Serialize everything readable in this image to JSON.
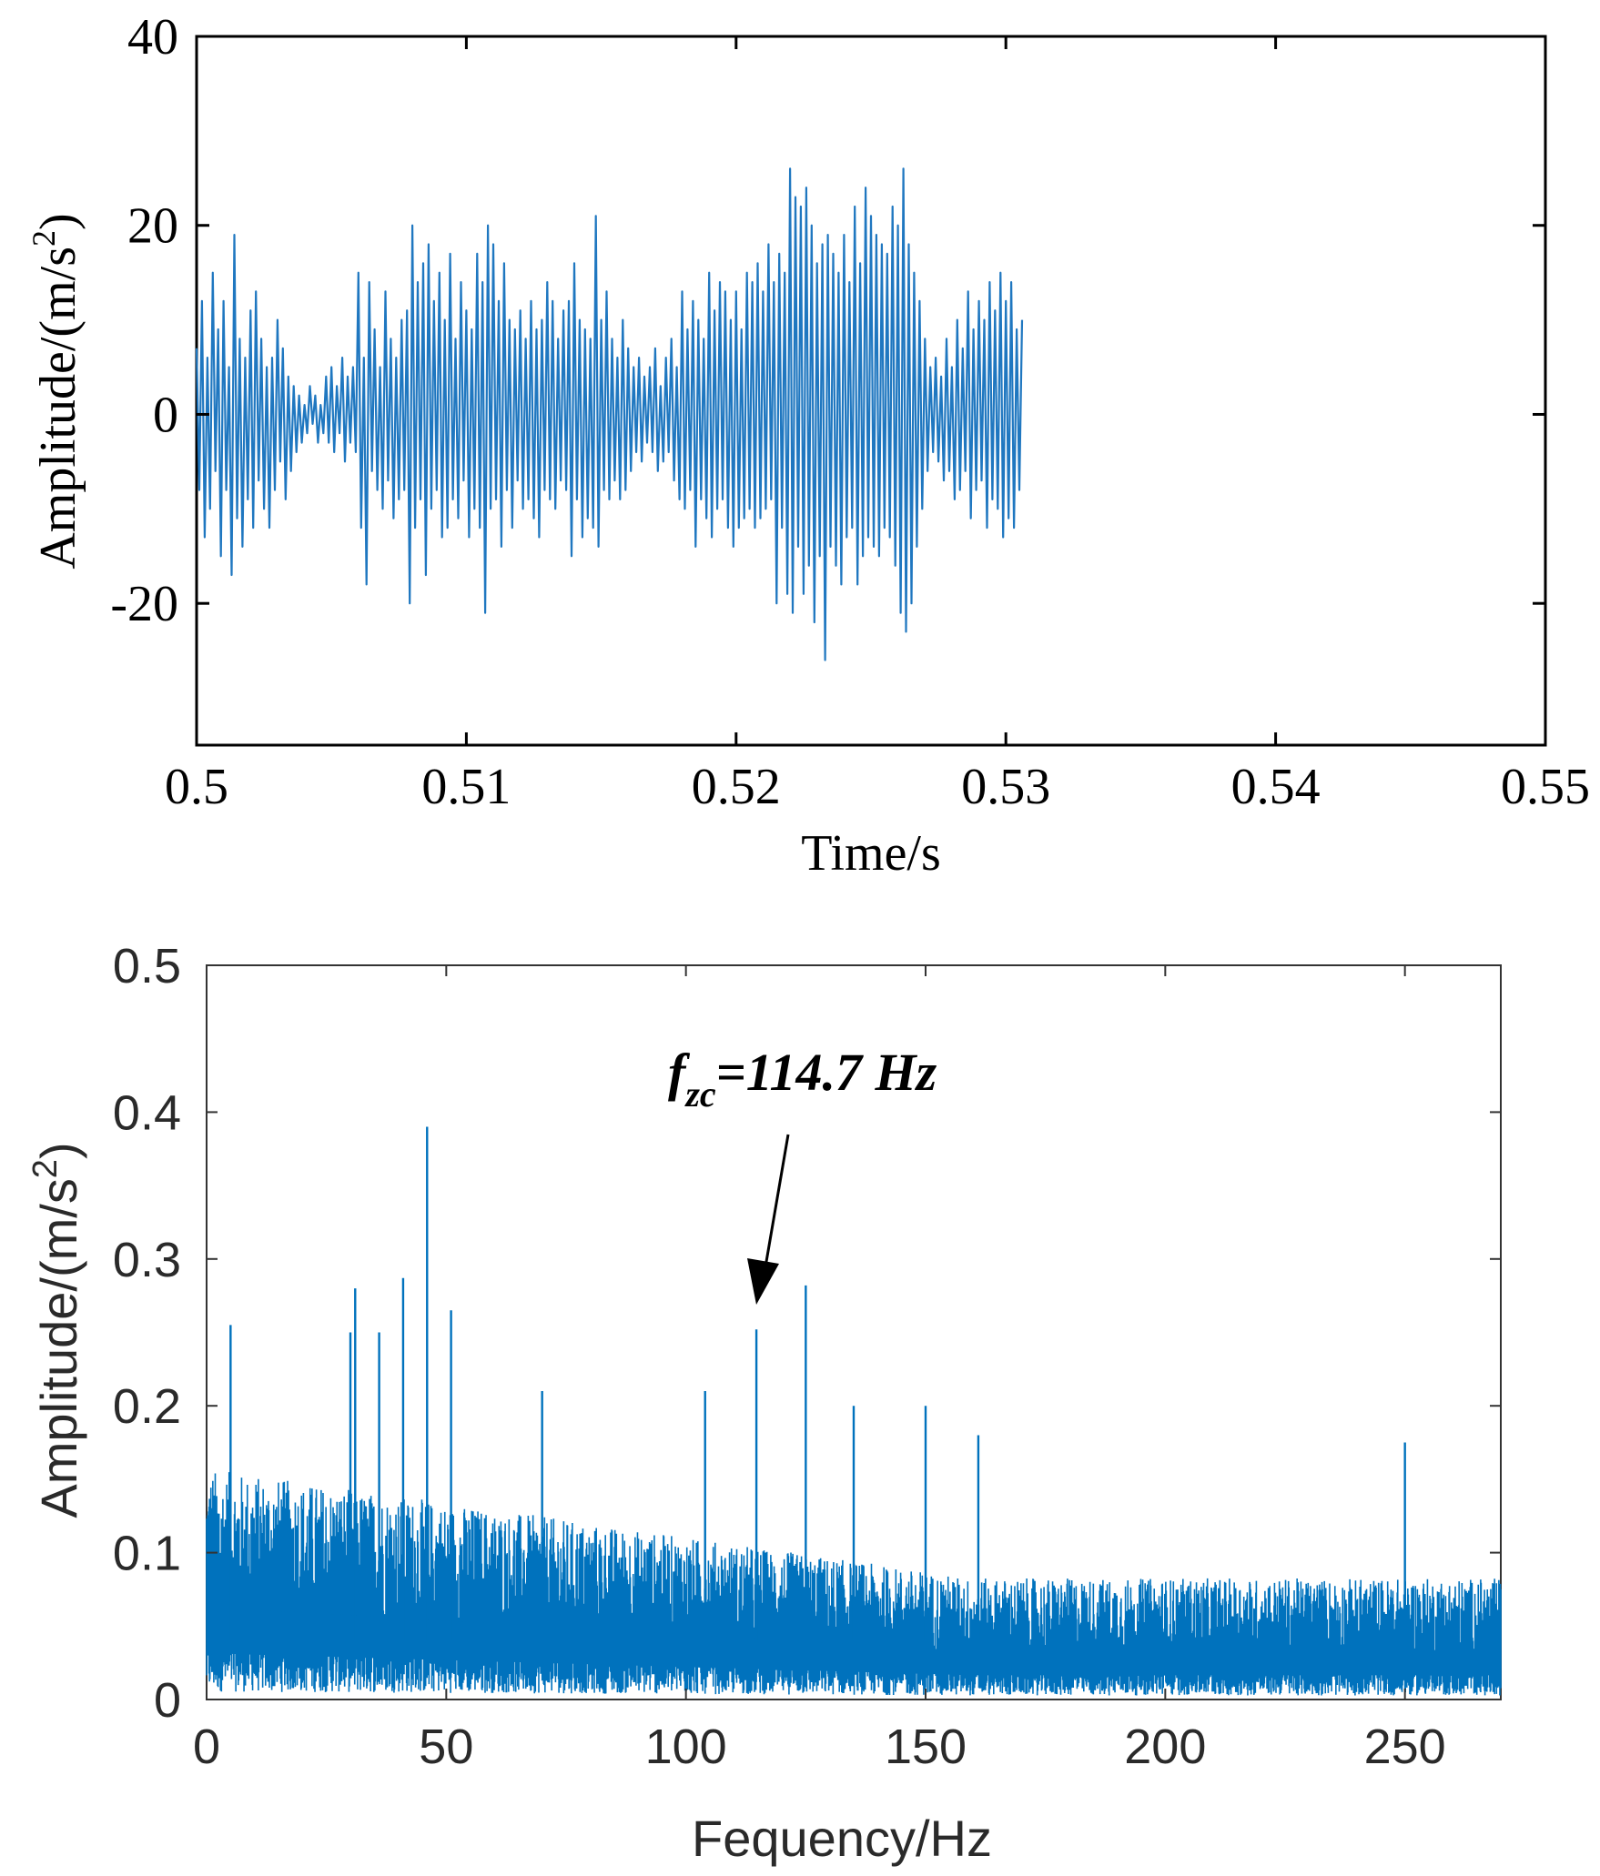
{
  "chart_data": [
    {
      "type": "line",
      "title": "",
      "xlabel": "Time/s",
      "ylabel": "Amplitude/(m/s",
      "ylabel_exponent": "2",
      "ylabel_close": ")",
      "xlim": [
        0.5,
        0.55
      ],
      "ylim": [
        -35,
        40
      ],
      "xticks": [
        0.5,
        0.51,
        0.52,
        0.53,
        0.54,
        0.55
      ],
      "xtick_labels": [
        "0.5",
        "0.51",
        "0.52",
        "0.53",
        "0.54",
        "0.55"
      ],
      "yticks": [
        -20,
        0,
        20,
        40
      ],
      "ytick_labels": [
        "-20",
        "0",
        "20",
        "40"
      ],
      "grid": false,
      "color": "#1f77c0",
      "series": [
        {
          "sample_interval_s": 0.0001,
          "x_start": 0.5,
          "values": [
            7,
            -8,
            12,
            -13,
            6,
            -10,
            15,
            -6,
            9,
            -15,
            12,
            -8,
            5,
            -17,
            19,
            -11,
            8,
            -14,
            6,
            -9,
            11,
            -12,
            13,
            -7,
            8,
            -10,
            5,
            -12,
            6,
            -8,
            10,
            -5,
            7,
            -9,
            4,
            -6,
            3,
            -4,
            2,
            -3,
            1,
            -2,
            3,
            -1,
            2,
            -3,
            1,
            -2,
            4,
            -3,
            5,
            -4,
            3,
            -2,
            6,
            -5,
            4,
            -3,
            5,
            -4,
            15,
            -12,
            6,
            -18,
            14,
            -6,
            9,
            -8,
            5,
            -10,
            13,
            -7,
            8,
            -11,
            6,
            -9,
            10,
            -8,
            11,
            -20,
            20,
            -12,
            14,
            -9,
            16,
            -17,
            18,
            -10,
            12,
            -8,
            15,
            -13,
            10,
            -12,
            17,
            -9,
            8,
            -11,
            14,
            -7,
            11,
            -13,
            9,
            -10,
            17,
            -12,
            14,
            -21,
            20,
            -10,
            18,
            -9,
            12,
            -14,
            16,
            -8,
            10,
            -12,
            9,
            -7,
            11,
            -10,
            8,
            -9,
            12,
            -11,
            9,
            -13,
            10,
            -8,
            14,
            -9,
            12,
            -10,
            8,
            -7,
            11,
            -8,
            12,
            -15,
            16,
            -9,
            10,
            -13,
            9,
            -11,
            8,
            -12,
            21,
            -14,
            10,
            -8,
            13,
            -9,
            8,
            -7,
            6,
            -9,
            10,
            -8,
            7,
            -6,
            5,
            -4,
            6,
            -5,
            4,
            -3,
            5,
            -4,
            7,
            -6,
            3,
            -5,
            6,
            -4,
            8,
            -7,
            5,
            -9,
            13,
            -10,
            9,
            -8,
            12,
            -14,
            10,
            -9,
            8,
            -11,
            15,
            -13,
            11,
            -10,
            14,
            -9,
            13,
            -12,
            10,
            -14,
            13,
            -12,
            9,
            -11,
            15,
            -10,
            14,
            -12,
            16,
            -11,
            13,
            -10,
            18,
            -9,
            14,
            -20,
            17,
            -12,
            15,
            -19,
            26,
            -21,
            23,
            -14,
            22,
            -19,
            24,
            -16,
            20,
            -22,
            16,
            -15,
            18,
            -26,
            19,
            -14,
            17,
            -16,
            15,
            -18,
            19,
            -13,
            14,
            -12,
            22,
            -18,
            16,
            -15,
            24,
            -13,
            21,
            -14,
            19,
            -15,
            18,
            -12,
            17,
            -13,
            22,
            -16,
            20,
            -21,
            26,
            -23,
            18,
            -20,
            15,
            -14,
            12,
            -10,
            8,
            -6,
            5,
            -4,
            6,
            -5,
            4,
            -7,
            8,
            -6,
            5,
            -9,
            10,
            -8,
            7,
            -6,
            13,
            -11,
            9,
            -8,
            12,
            -7,
            10,
            -12,
            14,
            -9,
            11,
            -10,
            15,
            -13,
            12,
            -11,
            14,
            -12,
            9,
            -8,
            10
          ]
        }
      ]
    },
    {
      "type": "line",
      "title": "",
      "xlabel": "Fequency/Hz",
      "ylabel": "Amplitude/(m/s",
      "ylabel_exponent": "2",
      "ylabel_close": ")",
      "xlim": [
        0,
        270
      ],
      "ylim": [
        0,
        0.5
      ],
      "xticks": [
        0,
        50,
        100,
        150,
        200,
        250
      ],
      "xtick_labels": [
        "0",
        "50",
        "100",
        "150",
        "200",
        "250"
      ],
      "yticks": [
        0,
        0.1,
        0.2,
        0.3,
        0.4,
        0.5
      ],
      "ytick_labels": [
        "0",
        "0.1",
        "0.2",
        "0.3",
        "0.4",
        "0.5"
      ],
      "grid": false,
      "color": "#0072bd",
      "peaks": [
        {
          "x": 5,
          "y": 0.255
        },
        {
          "x": 30,
          "y": 0.25
        },
        {
          "x": 31,
          "y": 0.28
        },
        {
          "x": 36,
          "y": 0.25
        },
        {
          "x": 41,
          "y": 0.287
        },
        {
          "x": 46,
          "y": 0.39
        },
        {
          "x": 51,
          "y": 0.265
        },
        {
          "x": 70,
          "y": 0.21
        },
        {
          "x": 104,
          "y": 0.21
        },
        {
          "x": 114.7,
          "y": 0.252
        },
        {
          "x": 125,
          "y": 0.282
        },
        {
          "x": 135,
          "y": 0.2
        },
        {
          "x": 150,
          "y": 0.2
        },
        {
          "x": 161,
          "y": 0.18
        },
        {
          "x": 250,
          "y": 0.175
        }
      ],
      "annotation": {
        "text_base": "f",
        "text_subscript": "zc",
        "text_rest": "=114.7 Hz",
        "x": 114.7,
        "y": 0.252
      }
    }
  ]
}
